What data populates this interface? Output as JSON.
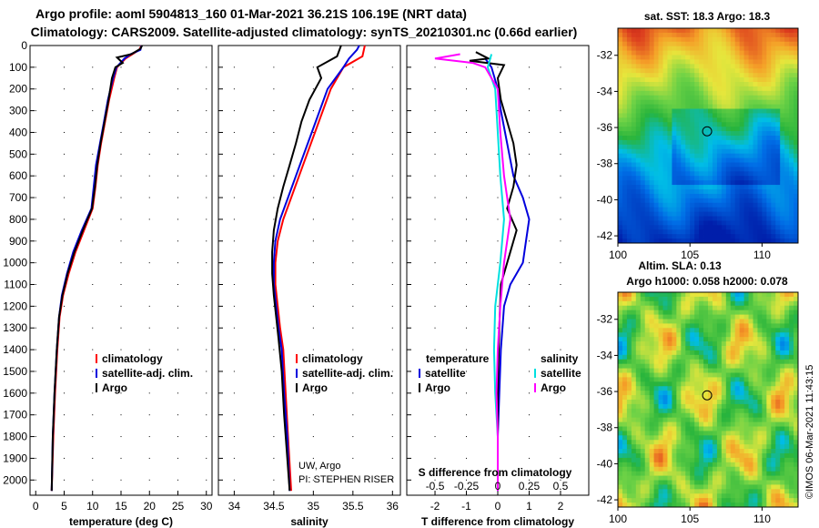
{
  "title": {
    "line1": "Argo profile: aoml 5904813_160 01-Mar-2021 36.21S 106.19E (NRT data)",
    "line2": "Climatology: CARS2009. Satellite-adjusted climatology: synTS_20210301.nc (0.66d earlier)"
  },
  "colors": {
    "climatology": "#ff0000",
    "satellite": "#0000dd",
    "argo": "#000000",
    "sat_salinity": "#00e0e0",
    "argo_salinity": "#ff00ff"
  },
  "notes": {
    "institution": "UW, Argo",
    "pi": "PI: STEPHEN RISER",
    "imos": "©IMOS 06-Mar-2021 11:43:15"
  },
  "chart_data": [
    {
      "type": "line",
      "id": "temperature",
      "xlabel": "temperature (deg C)",
      "ylabel": "",
      "xlim": [
        -1,
        31
      ],
      "ylim": [
        2070,
        0
      ],
      "xticks": [
        "0",
        "5",
        "10",
        "15",
        "20",
        "25",
        "30"
      ],
      "xtick_values": [
        0,
        5,
        10,
        15,
        20,
        25,
        30
      ],
      "yticks": [
        "0",
        "100",
        "200",
        "300",
        "400",
        "500",
        "600",
        "700",
        "800",
        "900",
        "1000",
        "1100",
        "1200",
        "1300",
        "1400",
        "1500",
        "1600",
        "1700",
        "1800",
        "1900",
        "2000"
      ],
      "ytick_values": [
        0,
        100,
        200,
        300,
        400,
        500,
        600,
        700,
        800,
        900,
        1000,
        1100,
        1200,
        1300,
        1400,
        1500,
        1600,
        1700,
        1800,
        1900,
        2000
      ],
      "legend": [
        "climatology",
        "satellite-adj. clim.",
        "Argo"
      ],
      "series": [
        {
          "name": "climatology",
          "color": "#ff0000",
          "points": [
            [
              18.6,
              0
            ],
            [
              18.2,
              20
            ],
            [
              17.0,
              40
            ],
            [
              15.8,
              60
            ],
            [
              14.3,
              100
            ],
            [
              13.8,
              150
            ],
            [
              12.9,
              250
            ],
            [
              12.2,
              350
            ],
            [
              11.5,
              450
            ],
            [
              10.9,
              550
            ],
            [
              10.5,
              650
            ],
            [
              10.0,
              750
            ],
            [
              8.5,
              850
            ],
            [
              7.0,
              950
            ],
            [
              5.8,
              1050
            ],
            [
              4.8,
              1150
            ],
            [
              4.2,
              1250
            ],
            [
              3.8,
              1400
            ],
            [
              3.4,
              1600
            ],
            [
              3.1,
              1800
            ],
            [
              2.8,
              2050
            ]
          ]
        },
        {
          "name": "satellite",
          "color": "#0000dd",
          "points": [
            [
              18.6,
              0
            ],
            [
              18.4,
              20
            ],
            [
              16.7,
              40
            ],
            [
              15.6,
              60
            ],
            [
              14.2,
              100
            ],
            [
              13.6,
              150
            ],
            [
              12.7,
              250
            ],
            [
              12.0,
              350
            ],
            [
              11.3,
              450
            ],
            [
              10.6,
              550
            ],
            [
              10.2,
              650
            ],
            [
              9.8,
              750
            ],
            [
              8.1,
              850
            ],
            [
              6.6,
              950
            ],
            [
              5.5,
              1050
            ],
            [
              4.6,
              1150
            ],
            [
              4.1,
              1250
            ],
            [
              3.7,
              1400
            ],
            [
              3.3,
              1600
            ],
            [
              3.0,
              1800
            ],
            [
              2.8,
              2050
            ]
          ]
        },
        {
          "name": "argo",
          "color": "#000000",
          "points": [
            [
              18.7,
              0
            ],
            [
              18.4,
              15
            ],
            [
              16.8,
              40
            ],
            [
              14.3,
              55
            ],
            [
              15.3,
              80
            ],
            [
              14.0,
              100
            ],
            [
              13.4,
              150
            ],
            [
              12.8,
              250
            ],
            [
              12.1,
              350
            ],
            [
              11.4,
              450
            ],
            [
              10.8,
              550
            ],
            [
              10.4,
              650
            ],
            [
              9.9,
              750
            ],
            [
              8.3,
              850
            ],
            [
              6.8,
              950
            ],
            [
              5.6,
              1050
            ],
            [
              4.7,
              1150
            ],
            [
              4.1,
              1250
            ],
            [
              3.7,
              1400
            ],
            [
              3.3,
              1600
            ],
            [
              3.0,
              1800
            ],
            [
              2.8,
              2050
            ]
          ]
        }
      ]
    },
    {
      "type": "line",
      "id": "salinity",
      "xlabel": "salinity",
      "ylabel": "",
      "xlim": [
        33.8,
        36.1
      ],
      "ylim": [
        2070,
        0
      ],
      "xticks": [
        "34",
        "34.5",
        "35",
        "35.5",
        "36"
      ],
      "xtick_values": [
        34,
        34.5,
        35,
        35.5,
        36
      ],
      "legend": [
        "climatology",
        "satellite-adj. clim.",
        "Argo"
      ],
      "series": [
        {
          "name": "climatology",
          "color": "#ff0000",
          "points": [
            [
              35.65,
              0
            ],
            [
              35.62,
              50
            ],
            [
              35.38,
              100
            ],
            [
              35.22,
              200
            ],
            [
              35.12,
              300
            ],
            [
              35.02,
              400
            ],
            [
              34.92,
              500
            ],
            [
              34.82,
              600
            ],
            [
              34.72,
              700
            ],
            [
              34.62,
              800
            ],
            [
              34.55,
              900
            ],
            [
              34.52,
              1000
            ],
            [
              34.52,
              1100
            ],
            [
              34.55,
              1200
            ],
            [
              34.58,
              1300
            ],
            [
              34.62,
              1400
            ],
            [
              34.65,
              1600
            ],
            [
              34.68,
              1800
            ],
            [
              34.72,
              2050
            ]
          ]
        },
        {
          "name": "satellite",
          "color": "#0000dd",
          "points": [
            [
              35.58,
              0
            ],
            [
              35.55,
              20
            ],
            [
              35.45,
              60
            ],
            [
              35.38,
              100
            ],
            [
              35.18,
              200
            ],
            [
              35.08,
              300
            ],
            [
              34.98,
              400
            ],
            [
              34.88,
              500
            ],
            [
              34.78,
              600
            ],
            [
              34.68,
              700
            ],
            [
              34.58,
              800
            ],
            [
              34.52,
              900
            ],
            [
              34.5,
              1000
            ],
            [
              34.5,
              1100
            ],
            [
              34.53,
              1200
            ],
            [
              34.56,
              1300
            ],
            [
              34.6,
              1400
            ],
            [
              34.63,
              1600
            ],
            [
              34.67,
              1800
            ],
            [
              34.7,
              2050
            ]
          ]
        },
        {
          "name": "argo",
          "color": "#000000",
          "points": [
            [
              35.35,
              0
            ],
            [
              35.3,
              50
            ],
            [
              35.05,
              100
            ],
            [
              35.1,
              150
            ],
            [
              34.95,
              250
            ],
            [
              34.85,
              350
            ],
            [
              34.78,
              450
            ],
            [
              34.7,
              550
            ],
            [
              34.62,
              650
            ],
            [
              34.55,
              750
            ],
            [
              34.5,
              850
            ],
            [
              34.48,
              950
            ],
            [
              34.48,
              1050
            ],
            [
              34.5,
              1150
            ],
            [
              34.53,
              1250
            ],
            [
              34.56,
              1350
            ],
            [
              34.6,
              1500
            ],
            [
              34.63,
              1700
            ],
            [
              34.67,
              1900
            ],
            [
              34.7,
              2050
            ]
          ]
        }
      ]
    },
    {
      "type": "line",
      "id": "difference",
      "xlabel": "T difference from climatology",
      "xlabel_top": "S difference from climatology",
      "xlim": [
        -2.9,
        2.9
      ],
      "ylim": [
        2070,
        0
      ],
      "xticks": [
        "-2",
        "-1",
        "0",
        "1",
        "2"
      ],
      "xtick_values": [
        -2,
        -1,
        0,
        1,
        2
      ],
      "sticks": [
        "-0.5",
        "-0.25",
        "0",
        "0.25",
        "0.5"
      ],
      "stick_values": [
        -0.5,
        -0.25,
        0,
        0.25,
        0.5
      ],
      "s_scale": 4,
      "legend_left": [
        "temperature",
        "satellite",
        "Argo"
      ],
      "legend_right": [
        "salinity",
        "satellite",
        "Argo"
      ],
      "series": [
        {
          "name": "satellite T diff",
          "color": "#0000dd",
          "points": [
            [
              -0.4,
              60
            ],
            [
              -0.2,
              100
            ],
            [
              0.0,
              200
            ],
            [
              0.1,
              300
            ],
            [
              0.3,
              450
            ],
            [
              0.5,
              600
            ],
            [
              0.8,
              700
            ],
            [
              1.0,
              800
            ],
            [
              0.9,
              900
            ],
            [
              0.8,
              1000
            ],
            [
              0.4,
              1100
            ],
            [
              0.2,
              1200
            ],
            [
              0.1,
              1400
            ],
            [
              0.05,
              1600
            ],
            [
              0.0,
              1800
            ],
            [
              0.0,
              2050
            ]
          ]
        },
        {
          "name": "Argo T diff",
          "color": "#000000",
          "points": [
            [
              -0.7,
              30
            ],
            [
              -0.3,
              60
            ],
            [
              -0.9,
              70
            ],
            [
              0.2,
              90
            ],
            [
              0.0,
              150
            ],
            [
              0.1,
              250
            ],
            [
              0.3,
              350
            ],
            [
              0.5,
              450
            ],
            [
              0.6,
              550
            ],
            [
              0.5,
              650
            ],
            [
              0.3,
              750
            ],
            [
              0.6,
              850
            ],
            [
              0.4,
              950
            ],
            [
              0.1,
              1100
            ],
            [
              0.05,
              1300
            ],
            [
              0.0,
              1600
            ],
            [
              0.0,
              2050
            ]
          ]
        },
        {
          "name": "satellite S diff",
          "color": "#00e0e0",
          "points": [
            [
              -0.05,
              40
            ],
            [
              -0.08,
              100
            ],
            [
              -0.02,
              200
            ],
            [
              0.0,
              400
            ],
            [
              0.02,
              600
            ],
            [
              0.05,
              800
            ],
            [
              0.02,
              1000
            ],
            [
              -0.02,
              1200
            ],
            [
              -0.03,
              1400
            ],
            [
              -0.02,
              1600
            ],
            [
              0.0,
              1800
            ],
            [
              0.0,
              2050
            ]
          ]
        },
        {
          "name": "Argo S diff",
          "color": "#ff00ff",
          "points": [
            [
              -0.3,
              40
            ],
            [
              -0.5,
              60
            ],
            [
              -0.2,
              80
            ],
            [
              -0.1,
              100
            ],
            [
              0.0,
              200
            ],
            [
              0.02,
              400
            ],
            [
              0.05,
              600
            ],
            [
              0.1,
              800
            ],
            [
              0.05,
              1000
            ],
            [
              0.02,
              1200
            ],
            [
              0.0,
              1400
            ],
            [
              -0.01,
              1600
            ],
            [
              0.0,
              1800
            ],
            [
              0.0,
              2050
            ]
          ]
        }
      ]
    },
    {
      "type": "heatmap",
      "id": "sst-map",
      "title": "sat. SST: 18.3 Argo: 18.3",
      "xlim": [
        100,
        112.5
      ],
      "ylim": [
        -42.4,
        -30.5
      ],
      "xticks": [
        "100",
        "105",
        "110"
      ],
      "yticks": [
        "-32",
        "-34",
        "-36",
        "-38",
        "-40",
        "-42"
      ],
      "marker": [
        106.19,
        -36.21
      ]
    },
    {
      "type": "heatmap",
      "id": "sla-map",
      "title1": "Altim. SLA: 0.13",
      "title2": "Argo h1000: 0.058 h2000: 0.078",
      "xlim": [
        100,
        112.5
      ],
      "ylim": [
        -42.4,
        -30.5
      ],
      "xticks": [
        "100",
        "105",
        "110"
      ],
      "yticks": [
        "-32",
        "-34",
        "-36",
        "-38",
        "-40",
        "-42"
      ],
      "marker": [
        106.19,
        -36.21
      ]
    }
  ]
}
